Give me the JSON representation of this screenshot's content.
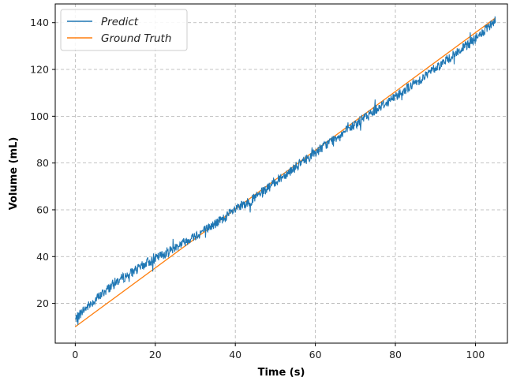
{
  "chart_data": {
    "type": "line",
    "xlabel": "Time (s)",
    "ylabel": "Volume (mL)",
    "xlim": [
      -5,
      108
    ],
    "ylim": [
      3,
      148
    ],
    "x_ticks": [
      0,
      20,
      40,
      60,
      80,
      100
    ],
    "y_ticks": [
      20,
      40,
      60,
      80,
      100,
      120,
      140
    ],
    "grid": true,
    "grid_style": "dashed",
    "legend_position": "top-left",
    "series": [
      {
        "name": "Predict",
        "color": "#1f77b4",
        "x": [
          0,
          2,
          4,
          6,
          8,
          10,
          12,
          14,
          16,
          18,
          20,
          22,
          24,
          26,
          28,
          30,
          32,
          34,
          36,
          38,
          40,
          42,
          44,
          46,
          48,
          50,
          52,
          54,
          56,
          58,
          60,
          62,
          64,
          66,
          68,
          70,
          72,
          74,
          76,
          78,
          80,
          82,
          84,
          86,
          88,
          90,
          92,
          94,
          96,
          98,
          100,
          102,
          104,
          105
        ],
        "y": [
          13,
          17,
          20,
          23,
          26,
          29,
          31,
          33,
          35,
          37.5,
          39,
          41,
          43,
          45,
          47,
          49,
          51,
          53,
          55,
          57.5,
          60,
          62,
          64,
          66.5,
          69,
          72,
          74.5,
          77,
          79.5,
          82,
          84.5,
          87,
          89.5,
          92,
          94,
          96.5,
          99,
          101.5,
          104,
          106,
          108.5,
          111,
          113,
          115.5,
          118,
          120.5,
          123,
          125.5,
          128,
          130.5,
          133,
          136,
          139,
          141
        ]
      },
      {
        "name": "Ground Truth",
        "color": "#ff7f0e",
        "x": [
          0,
          105
        ],
        "y": [
          10,
          142
        ]
      }
    ]
  }
}
